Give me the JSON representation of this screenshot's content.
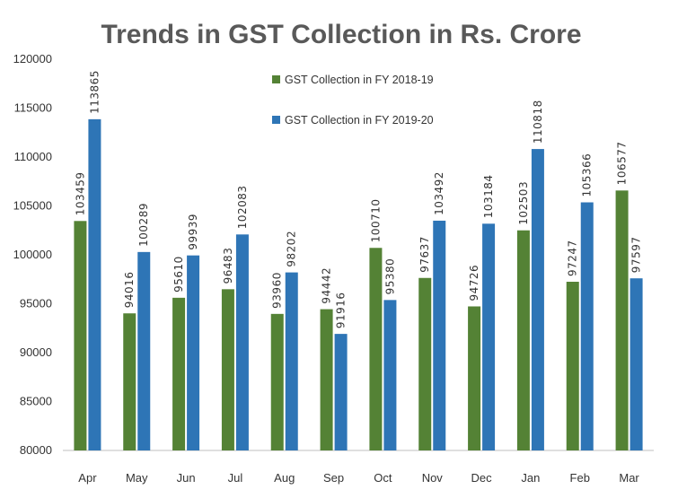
{
  "chart_data": {
    "type": "bar",
    "title": "Trends in GST Collection in Rs. Crore",
    "categories": [
      "Apr",
      "May",
      "Jun",
      "Jul",
      "Aug",
      "Sep",
      "Oct",
      "Nov",
      "Dec",
      "Jan",
      "Feb",
      "Mar"
    ],
    "series": [
      {
        "name": "GST Collection in FY 2018-19",
        "color": "#548235",
        "values": [
          103459,
          94016,
          95610,
          96483,
          93960,
          94442,
          100710,
          97637,
          94726,
          102503,
          97247,
          106577
        ]
      },
      {
        "name": "GST Collection in FY 2019-20",
        "color": "#2E75B6",
        "values": [
          113865,
          100289,
          99939,
          102083,
          98202,
          91916,
          95380,
          103492,
          103184,
          110818,
          105366,
          97597
        ]
      }
    ],
    "ylim": [
      80000,
      120000
    ],
    "yticks": [
      80000,
      85000,
      90000,
      95000,
      100000,
      105000,
      110000,
      115000,
      120000
    ],
    "grid": false,
    "legend": "top-center",
    "data_labels": "vertical"
  }
}
